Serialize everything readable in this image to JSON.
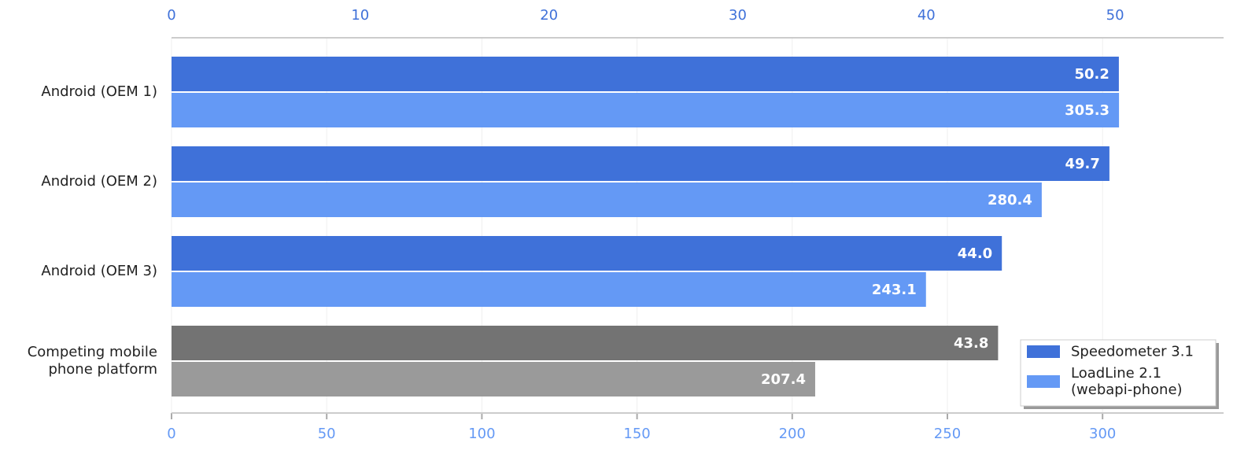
{
  "chart_data": {
    "type": "bar",
    "orientation": "horizontal",
    "categories": [
      "Android (OEM 1)",
      "Android (OEM 2)",
      "Android (OEM 3)",
      "Competing mobile phone platform"
    ],
    "series": [
      {
        "name": "Speedometer 3.1",
        "color": "#3f71d9",
        "axis": "x2",
        "colors": [
          "#3f71d9",
          "#3f71d9",
          "#3f71d9",
          "#737373"
        ],
        "values": [
          50.2,
          49.7,
          44.0,
          43.8
        ],
        "value_labels": [
          "50.2",
          "49.7",
          "44.0",
          "43.8"
        ]
      },
      {
        "name": "LoadLine 2.1 (webapi-phone)",
        "color": "#6499f5",
        "axis": "x",
        "colors": [
          "#6499f5",
          "#6499f5",
          "#6499f5",
          "#9a9a9a"
        ],
        "values": [
          305.3,
          280.4,
          243.1,
          207.4
        ]
      }
    ],
    "xlim": [
      0,
      339
    ],
    "xticks": [
      0,
      50,
      100,
      150,
      200,
      250,
      300
    ],
    "x2lim": [
      0,
      55.75
    ],
    "x2ticks": [
      0,
      10,
      20,
      30,
      40,
      50
    ],
    "grid": true,
    "legend": "lower right"
  }
}
